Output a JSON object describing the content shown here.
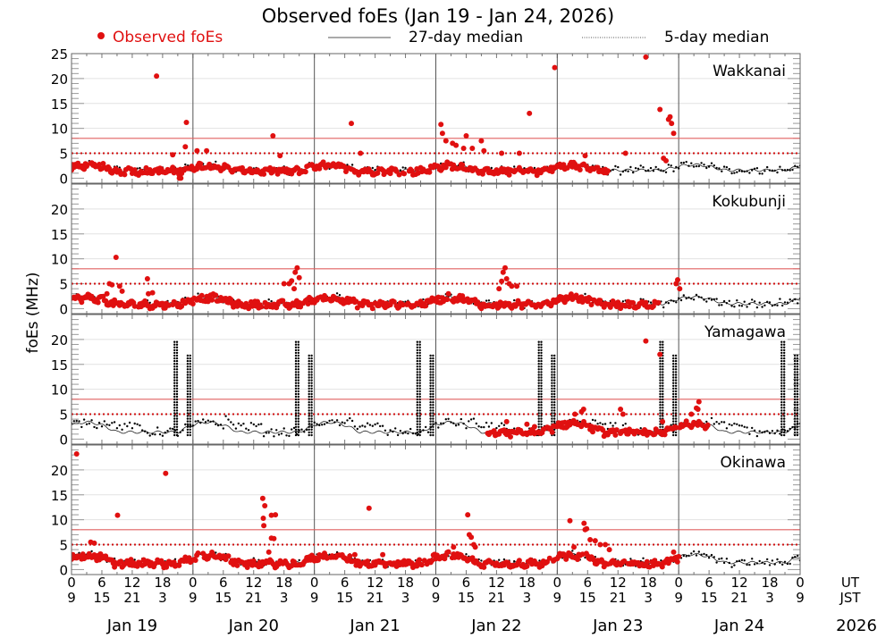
{
  "chart_data": {
    "type": "scatter",
    "title": "Observed foEs (Jan 19 - Jan 24, 2026)",
    "ylabel": "foEs (MHz)",
    "ylim": [
      -1,
      25
    ],
    "yticks": [
      0,
      5,
      10,
      15,
      20,
      25
    ],
    "xlim_hours": [
      0,
      144
    ],
    "x_ticks_ut": [
      "0",
      "6",
      "12",
      "18",
      "0",
      "6",
      "12",
      "18",
      "0",
      "6",
      "12",
      "18",
      "0",
      "6",
      "12",
      "18",
      "0",
      "6",
      "12",
      "18",
      "0",
      "6",
      "12",
      "18",
      "0"
    ],
    "x_ticks_jst": [
      "9",
      "15",
      "21",
      "3",
      "9",
      "15",
      "21",
      "3",
      "9",
      "15",
      "21",
      "3",
      "9",
      "15",
      "21",
      "3",
      "9",
      "15",
      "21",
      "3",
      "9",
      "15",
      "21",
      "3",
      "9"
    ],
    "x_row_labels": {
      "ut": "UT",
      "jst": "JST"
    },
    "day_labels": [
      "Jan 19",
      "Jan 20",
      "Jan 21",
      "Jan 22",
      "Jan 23",
      "Jan 24"
    ],
    "year_label": "2026",
    "grid": true,
    "reference_lines": [
      {
        "value": 8,
        "style": "solid",
        "color": "#e06060"
      },
      {
        "value": 5,
        "style": "dotted",
        "color": "#d01010"
      }
    ],
    "legend": {
      "placement": "top",
      "entries": [
        {
          "label": "Observed foEs",
          "style": "dot",
          "color": "#e01010"
        },
        {
          "label": "27-day median",
          "style": "solid",
          "color": "#000000"
        },
        {
          "label": "5-day median",
          "style": "dotted",
          "color": "#000000"
        }
      ]
    },
    "colors": {
      "observed": "#e01010",
      "median": "#000000",
      "ref_solid": "#e06060",
      "ref_dotted": "#d01010"
    },
    "panels": [
      {
        "station": "Wakkanai",
        "observed_until_hour": 106,
        "base_level": 1.6,
        "diurnal_amp": 1.2,
        "observed_outliers": [
          {
            "h": 16.8,
            "v": 20.5
          },
          {
            "h": 22.7,
            "v": 11.2
          },
          {
            "h": 22.5,
            "v": 6.3
          },
          {
            "h": 21.3,
            "v": 0.0
          },
          {
            "h": 21.6,
            "v": 0.0
          },
          {
            "h": 20.0,
            "v": 4.7
          },
          {
            "h": 24.8,
            "v": 5.5
          },
          {
            "h": 26.7,
            "v": 5.5
          },
          {
            "h": 39.8,
            "v": 8.5
          },
          {
            "h": 41.2,
            "v": 4.5
          },
          {
            "h": 55.3,
            "v": 11.0
          },
          {
            "h": 57.1,
            "v": 5.0
          },
          {
            "h": 73.0,
            "v": 10.8
          },
          {
            "h": 73.3,
            "v": 9.0
          },
          {
            "h": 74.0,
            "v": 7.5
          },
          {
            "h": 75.3,
            "v": 7.0
          },
          {
            "h": 76.0,
            "v": 6.6
          },
          {
            "h": 77.5,
            "v": 6.0
          },
          {
            "h": 78.0,
            "v": 8.5
          },
          {
            "h": 79.2,
            "v": 6.0
          },
          {
            "h": 81.0,
            "v": 7.5
          },
          {
            "h": 81.5,
            "v": 5.5
          },
          {
            "h": 85.0,
            "v": 5.0
          },
          {
            "h": 88.5,
            "v": 5.0
          },
          {
            "h": 90.5,
            "v": 13.0
          },
          {
            "h": 95.5,
            "v": 22.2
          },
          {
            "h": 101.5,
            "v": 4.5
          },
          {
            "h": 109.5,
            "v": 5.0
          },
          {
            "h": 113.5,
            "v": 24.3
          },
          {
            "h": 116.3,
            "v": 13.8
          },
          {
            "h": 118.0,
            "v": 11.8
          },
          {
            "h": 118.3,
            "v": 12.3
          },
          {
            "h": 118.6,
            "v": 11.0
          },
          {
            "h": 119.0,
            "v": 9.0
          },
          {
            "h": 117.0,
            "v": 4.0
          },
          {
            "h": 117.5,
            "v": 3.5
          }
        ],
        "median27_peak_hour": 3,
        "fiveday_spikes": []
      },
      {
        "station": "Kokubunji",
        "observed_until_hour": 116,
        "base_level": 1.0,
        "diurnal_amp": 1.5,
        "observed_outliers": [
          {
            "h": 8.8,
            "v": 10.3
          },
          {
            "h": 7.5,
            "v": 5.0
          },
          {
            "h": 8.0,
            "v": 4.8
          },
          {
            "h": 9.5,
            "v": 4.5
          },
          {
            "h": 10.0,
            "v": 3.5
          },
          {
            "h": 7.0,
            "v": 3.0
          },
          {
            "h": 15.0,
            "v": 6.0
          },
          {
            "h": 15.2,
            "v": 3.0
          },
          {
            "h": 16.0,
            "v": 3.2
          },
          {
            "h": 42.0,
            "v": 5.0
          },
          {
            "h": 43.0,
            "v": 5.0
          },
          {
            "h": 43.5,
            "v": 5.6
          },
          {
            "h": 44.2,
            "v": 7.3
          },
          {
            "h": 44.6,
            "v": 8.2
          },
          {
            "h": 45.0,
            "v": 6.2
          },
          {
            "h": 44.0,
            "v": 4.0
          },
          {
            "h": 85.7,
            "v": 8.2
          },
          {
            "h": 85.3,
            "v": 7.3
          },
          {
            "h": 86.0,
            "v": 6.0
          },
          {
            "h": 85.0,
            "v": 5.5
          },
          {
            "h": 86.5,
            "v": 5.0
          },
          {
            "h": 87.0,
            "v": 4.5
          },
          {
            "h": 88.0,
            "v": 4.5
          },
          {
            "h": 84.5,
            "v": 4.0
          },
          {
            "h": 119.8,
            "v": 5.8
          },
          {
            "h": 119.5,
            "v": 5.0
          },
          {
            "h": 120.2,
            "v": 4.0
          }
        ],
        "median27_peak_hour": 3,
        "fiveday_spikes": []
      },
      {
        "station": "Yamagawa",
        "observed_from_hour": 82,
        "observed_until_hour": 126,
        "base_level": 1.4,
        "diurnal_amp": 2.2,
        "observed_outliers": [
          {
            "h": 113.5,
            "v": 19.7
          },
          {
            "h": 116.3,
            "v": 17.0
          },
          {
            "h": 116.8,
            "v": 3.5
          },
          {
            "h": 124.0,
            "v": 7.5
          },
          {
            "h": 123.5,
            "v": 6.2
          },
          {
            "h": 123.8,
            "v": 6.0
          },
          {
            "h": 122.5,
            "v": 5.0
          },
          {
            "h": 100.8,
            "v": 5.5
          },
          {
            "h": 101.2,
            "v": 6.0
          },
          {
            "h": 99.5,
            "v": 5.0
          },
          {
            "h": 108.5,
            "v": 6.0
          },
          {
            "h": 109.0,
            "v": 5.0
          },
          {
            "h": 86.0,
            "v": 3.5
          },
          {
            "h": 90.0,
            "v": 3.0
          },
          {
            "h": 91.5,
            "v": 2.5
          }
        ],
        "median27_peak_hour": 3,
        "fiveday_spikes": [
          {
            "h": 20.6,
            "v": 19.6
          },
          {
            "h": 23.2,
            "v": 17.0
          },
          {
            "h": 44.6,
            "v": 19.6
          },
          {
            "h": 47.2,
            "v": 17.0
          },
          {
            "h": 68.6,
            "v": 19.6
          },
          {
            "h": 71.2,
            "v": 17.0
          },
          {
            "h": 92.6,
            "v": 19.6
          },
          {
            "h": 95.2,
            "v": 17.0
          },
          {
            "h": 116.6,
            "v": 19.6
          },
          {
            "h": 119.2,
            "v": 17.0
          },
          {
            "h": 140.6,
            "v": 19.6
          },
          {
            "h": 143.2,
            "v": 17.0
          }
        ]
      },
      {
        "station": "Okinawa",
        "observed_until_hour": 120,
        "base_level": 1.4,
        "diurnal_amp": 1.8,
        "observed_outliers": [
          {
            "h": 1.0,
            "v": 23.2
          },
          {
            "h": 9.1,
            "v": 10.9
          },
          {
            "h": 18.6,
            "v": 19.3
          },
          {
            "h": 3.8,
            "v": 5.5
          },
          {
            "h": 4.5,
            "v": 5.3
          },
          {
            "h": 8.5,
            "v": 0.5
          },
          {
            "h": 37.8,
            "v": 14.3
          },
          {
            "h": 38.2,
            "v": 12.8
          },
          {
            "h": 37.9,
            "v": 10.3
          },
          {
            "h": 38.0,
            "v": 8.8
          },
          {
            "h": 39.5,
            "v": 10.9
          },
          {
            "h": 40.3,
            "v": 11.0
          },
          {
            "h": 39.5,
            "v": 6.3
          },
          {
            "h": 40.0,
            "v": 6.2
          },
          {
            "h": 39.0,
            "v": 3.5
          },
          {
            "h": 40.5,
            "v": 1.0
          },
          {
            "h": 58.8,
            "v": 12.3
          },
          {
            "h": 56.0,
            "v": 3.0
          },
          {
            "h": 61.5,
            "v": 3.0
          },
          {
            "h": 78.3,
            "v": 11.0
          },
          {
            "h": 78.6,
            "v": 7.0
          },
          {
            "h": 79.0,
            "v": 6.5
          },
          {
            "h": 79.5,
            "v": 5.0
          },
          {
            "h": 79.8,
            "v": 4.5
          },
          {
            "h": 75.5,
            "v": 4.5
          },
          {
            "h": 98.5,
            "v": 9.8
          },
          {
            "h": 99.3,
            "v": 4.5
          },
          {
            "h": 101.3,
            "v": 9.3
          },
          {
            "h": 101.5,
            "v": 8.0
          },
          {
            "h": 101.8,
            "v": 8.2
          },
          {
            "h": 102.5,
            "v": 6.0
          },
          {
            "h": 103.5,
            "v": 5.8
          },
          {
            "h": 104.5,
            "v": 5.0
          },
          {
            "h": 105.5,
            "v": 5.0
          },
          {
            "h": 106.3,
            "v": 4.0
          },
          {
            "h": 119.0,
            "v": 3.5
          }
        ],
        "median27_peak_hour": 3,
        "fiveday_spikes": []
      }
    ]
  }
}
